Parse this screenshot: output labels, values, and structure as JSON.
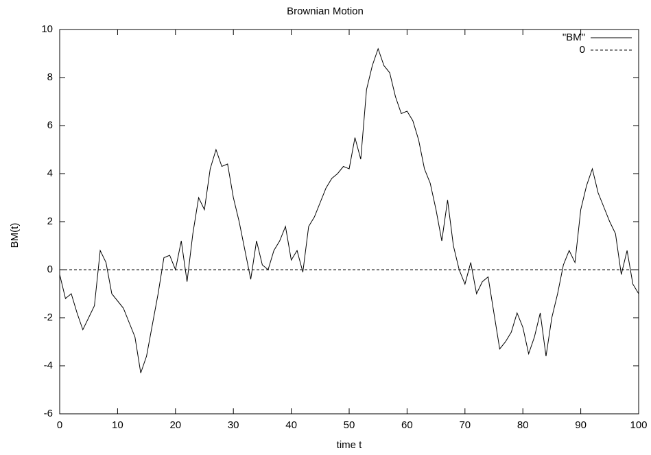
{
  "chart_data": {
    "type": "line",
    "title": "Brownian Motion",
    "xlabel": "time t",
    "ylabel": "BM(t)",
    "xlim": [
      0,
      100
    ],
    "ylim": [
      -6,
      10
    ],
    "xticks": [
      0,
      10,
      20,
      30,
      40,
      50,
      60,
      70,
      80,
      90,
      100
    ],
    "yticks": [
      -6,
      -4,
      -2,
      0,
      2,
      4,
      6,
      8,
      10
    ],
    "grid": false,
    "legend": "top-right",
    "series": [
      {
        "name": "\"BM\"",
        "color": "#000000",
        "dash": "solid",
        "x": [
          0,
          1,
          2,
          3,
          4,
          5,
          6,
          7,
          8,
          9,
          10,
          11,
          12,
          13,
          14,
          15,
          16,
          17,
          18,
          19,
          20,
          21,
          22,
          23,
          24,
          25,
          26,
          27,
          28,
          29,
          30,
          31,
          32,
          33,
          34,
          35,
          36,
          37,
          38,
          39,
          40,
          41,
          42,
          43,
          44,
          45,
          46,
          47,
          48,
          49,
          50,
          51,
          52,
          53,
          54,
          55,
          56,
          57,
          58,
          59,
          60,
          61,
          62,
          63,
          64,
          65,
          66,
          67,
          68,
          69,
          70,
          71,
          72,
          73,
          74,
          75,
          76,
          77,
          78,
          79,
          80,
          81,
          82,
          83,
          84,
          85,
          86,
          87,
          88,
          89,
          90,
          91,
          92,
          93,
          94,
          95,
          96,
          97,
          98,
          99,
          100
        ],
        "values": [
          -0.2,
          -1.2,
          -1.0,
          -1.8,
          -2.5,
          -2.0,
          -1.5,
          0.8,
          0.3,
          -1.0,
          -1.3,
          -1.6,
          -2.2,
          -2.8,
          -4.3,
          -3.6,
          -2.3,
          -1.0,
          0.5,
          0.6,
          0.0,
          1.2,
          -0.5,
          1.5,
          3.0,
          2.5,
          4.2,
          5.0,
          4.3,
          4.4,
          3.0,
          2.0,
          0.8,
          -0.4,
          1.2,
          0.2,
          0.0,
          0.8,
          1.2,
          1.8,
          0.4,
          0.8,
          -0.1,
          1.8,
          2.2,
          2.8,
          3.4,
          3.8,
          4.0,
          4.3,
          4.2,
          5.5,
          4.6,
          7.5,
          8.5,
          9.2,
          8.5,
          8.2,
          7.2,
          6.5,
          6.6,
          6.2,
          5.4,
          4.2,
          3.6,
          2.5,
          1.2,
          2.9,
          1.0,
          0.0,
          -0.6,
          0.3,
          -1.0,
          -0.5,
          -0.3,
          -1.8,
          -3.3,
          -3.0,
          -2.6,
          -1.8,
          -2.4,
          -3.5,
          -2.8,
          -1.8,
          -3.6,
          -2.0,
          -1.0,
          0.2,
          0.8,
          0.3,
          2.5,
          3.5,
          4.2,
          3.2,
          2.6,
          2.0,
          1.5,
          -0.2,
          0.8,
          -0.6,
          -1.0
        ]
      },
      {
        "name": "0",
        "color": "#000000",
        "dash": "dashed",
        "x": [
          0,
          100
        ],
        "values": [
          0,
          0
        ]
      }
    ]
  }
}
